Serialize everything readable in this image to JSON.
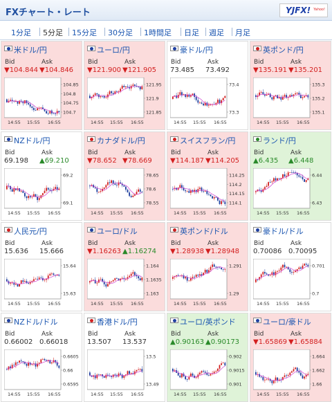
{
  "header": {
    "title": "FXチャート・レート",
    "logo": "YJFX!",
    "logo_sub": "Yahoo!"
  },
  "tabs": [
    "1分足",
    "5分足",
    "15分足",
    "30分足",
    "1時間足",
    "日足",
    "週足",
    "月足"
  ],
  "active_tab": "5分足",
  "labels": {
    "bid": "Bid",
    "ask": "Ask"
  },
  "colors": {
    "down_bg": "#fbdcdc",
    "up_bg": "#dff3d8",
    "down_text": "#d32020",
    "up_text": "#2a8a2a",
    "link": "#1a55b0",
    "candle_up": "#d22020",
    "candle_down": "#1f3f9f",
    "ma_line": "#d040d0"
  },
  "cards": [
    {
      "pair": "米ドル/円",
      "bid": "▼104.844",
      "ask": "▼104.846",
      "trend": "down",
      "flag": "us-flag-icon",
      "flag_color": "#1f3f9f",
      "chart_data": {
        "type": "candlestick",
        "y_ticks": [
          "104.85",
          "104.8",
          "104.75",
          "104.7"
        ],
        "x_ticks": [
          "14:55",
          "15:55",
          "16:55"
        ]
      }
    },
    {
      "pair": "ユーロ/円",
      "bid": "▼121.900",
      "ask": "▼121.905",
      "trend": "down",
      "flag": "eu-flag-icon",
      "flag_color": "#1f3f9f",
      "chart_data": {
        "type": "candlestick",
        "y_ticks": [
          "121.95",
          "121.9",
          "121.85"
        ],
        "x_ticks": [
          "14:55",
          "15:55",
          "16:55"
        ]
      }
    },
    {
      "pair": "豪ドル/円",
      "bid": "73.485",
      "ask": "73.492",
      "trend": "flat",
      "flag": "au-flag-icon",
      "flag_color": "#1f3f9f",
      "chart_data": {
        "type": "candlestick",
        "y_ticks": [
          "73.4",
          "73.3"
        ],
        "x_ticks": [
          "14:55",
          "15:55",
          "16:55"
        ]
      }
    },
    {
      "pair": "英ポンド/円",
      "bid": "▼135.191",
      "ask": "▼135.201",
      "trend": "down",
      "flag": "uk-flag-icon",
      "flag_color": "#c82020",
      "chart_data": {
        "type": "candlestick",
        "y_ticks": [
          "135.3",
          "135.2",
          "135.1"
        ],
        "x_ticks": [
          "14:55",
          "15:55",
          "16:55"
        ]
      }
    },
    {
      "pair": "NZドル/円",
      "bid": "69.198",
      "ask": "▲69.210",
      "trend": "flat",
      "flag": "nz-flag-icon",
      "flag_color": "#1f3f9f",
      "chart_data": {
        "type": "candlestick",
        "y_ticks": [
          "69.2",
          "69.1"
        ],
        "x_ticks": [
          "14:55",
          "15:55",
          "16:55"
        ]
      }
    },
    {
      "pair": "カナダドル/円",
      "bid": "▼78.652",
      "ask": "▼78.669",
      "trend": "down",
      "flag": "ca-flag-icon",
      "flag_color": "#d22020",
      "chart_data": {
        "type": "candlestick",
        "y_ticks": [
          "78.65",
          "78.6",
          "78.55"
        ],
        "x_ticks": [
          "14:55",
          "15:55",
          "16:55"
        ]
      }
    },
    {
      "pair": "スイスフラン/円",
      "bid": "▼114.187",
      "ask": "▼114.205",
      "trend": "down",
      "flag": "ch-flag-icon",
      "flag_color": "#d22020",
      "chart_data": {
        "type": "candlestick",
        "y_ticks": [
          "114.25",
          "114.2",
          "114.15",
          "114.1"
        ],
        "x_ticks": [
          "14:55",
          "15:55",
          "16:55"
        ]
      }
    },
    {
      "pair": "ランド/円",
      "bid": "▲6.435",
      "ask": "▲6.448",
      "trend": "up",
      "flag": "za-flag-icon",
      "flag_color": "#2a8a2a",
      "chart_data": {
        "type": "candlestick",
        "y_ticks": [
          "6.44",
          "6.43"
        ],
        "x_ticks": [
          "14:55",
          "15:55",
          "16:55"
        ]
      }
    },
    {
      "pair": "人民元/円",
      "bid": "15.636",
      "ask": "15.666",
      "trend": "flat",
      "flag": "cn-flag-icon",
      "flag_color": "#d22020",
      "chart_data": {
        "type": "candlestick",
        "y_ticks": [
          "15.64",
          "15.63"
        ],
        "x_ticks": [
          "14:55",
          "15:55",
          "16:55"
        ]
      }
    },
    {
      "pair": "ユーロ/ドル",
      "bid": "▼1.16263",
      "ask": "▲1.16274",
      "trend": "down",
      "flag": "eu-us-flag-icon",
      "flag_color": "#1f3f9f",
      "chart_data": {
        "type": "candlestick",
        "y_ticks": [
          "1.164",
          "1.1635",
          "1.163"
        ],
        "x_ticks": [
          "14:55",
          "15:55",
          "16:55"
        ]
      }
    },
    {
      "pair": "英ポンド/ドル",
      "bid": "▼1.28938",
      "ask": "▼1.28948",
      "trend": "down",
      "flag": "uk-us-flag-icon",
      "flag_color": "#c82020",
      "chart_data": {
        "type": "candlestick",
        "y_ticks": [
          "1.291",
          "1.29"
        ],
        "x_ticks": [
          "14:55",
          "15:55",
          "16:55"
        ]
      }
    },
    {
      "pair": "豪ドル/ドル",
      "bid": "0.70086",
      "ask": "0.70095",
      "trend": "flat",
      "flag": "au-us-flag-icon",
      "flag_color": "#1f3f9f",
      "chart_data": {
        "type": "candlestick",
        "y_ticks": [
          "0.701",
          "0.7"
        ],
        "x_ticks": [
          "14:55",
          "15:55",
          "16:55"
        ]
      }
    },
    {
      "pair": "NZドル/ドル",
      "bid": "0.66002",
      "ask": "0.66018",
      "trend": "flat",
      "flag": "nz-us-flag-icon",
      "flag_color": "#1f3f9f",
      "chart_data": {
        "type": "candlestick",
        "y_ticks": [
          "0.6605",
          "0.66",
          "0.6595"
        ],
        "x_ticks": [
          "14:55",
          "15:55",
          "16:55"
        ]
      }
    },
    {
      "pair": "香港ドル/円",
      "bid": "13.507",
      "ask": "13.537",
      "trend": "flat",
      "flag": "hk-flag-icon",
      "flag_color": "#d22020",
      "chart_data": {
        "type": "candlestick",
        "y_ticks": [
          "13.5",
          "13.49"
        ],
        "x_ticks": [
          "14:55",
          "15:55",
          "16:55"
        ]
      }
    },
    {
      "pair": "ユーロ/英ポンド",
      "bid": "▲0.90163",
      "ask": "▲0.90173",
      "trend": "up",
      "flag": "eu-uk-flag-icon",
      "flag_color": "#1f3f9f",
      "chart_data": {
        "type": "candlestick",
        "y_ticks": [
          "0.902",
          "0.9015",
          "0.901"
        ],
        "x_ticks": [
          "14:55",
          "15:55",
          "16:55"
        ]
      }
    },
    {
      "pair": "ユーロ/豪ドル",
      "bid": "▼1.65869",
      "ask": "▼1.65884",
      "trend": "down",
      "flag": "eu-au-flag-icon",
      "flag_color": "#1f3f9f",
      "chart_data": {
        "type": "candlestick",
        "y_ticks": [
          "1.664",
          "1.662",
          "1.66"
        ],
        "x_ticks": [
          "14:55",
          "15:55",
          "16:55"
        ]
      }
    }
  ]
}
